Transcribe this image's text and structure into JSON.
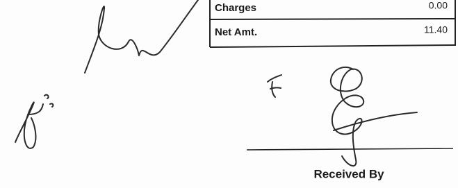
{
  "table": {
    "rows": [
      [
        "Charges",
        "0.00"
      ],
      [
        "Net Amt.",
        "11.40"
      ]
    ]
  },
  "footer": {
    "label": "Received By"
  }
}
